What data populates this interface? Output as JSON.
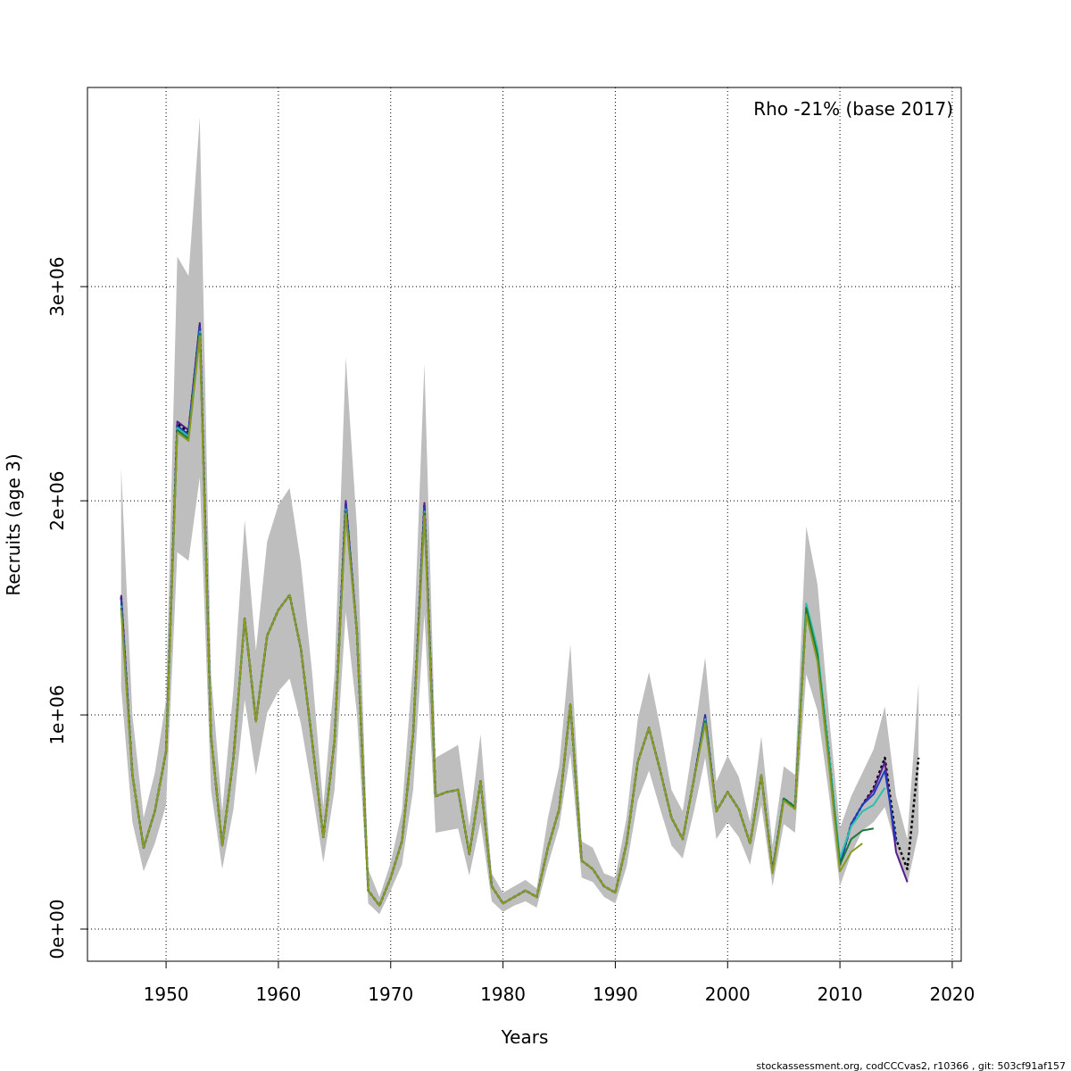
{
  "chart_data": {
    "type": "line",
    "xlabel": "Years",
    "ylabel": "Recruits (age 3)",
    "annotation": "Rho -21% (base 2017)",
    "footer": "stockassessment.org, codCCCvas2, r10366 , git: 503cf91af157",
    "xlim": [
      1943.0,
      2020.8
    ],
    "ylim": [
      -150000,
      3930000
    ],
    "x_ticks": [
      1950,
      1960,
      1970,
      1980,
      1990,
      2000,
      2010,
      2020
    ],
    "x_tick_labels": [
      "1950",
      "1960",
      "1970",
      "1980",
      "1990",
      "2000",
      "2010",
      "2020"
    ],
    "y_ticks": [
      0,
      1000000,
      2000000,
      3000000
    ],
    "y_tick_labels": [
      "0e+00",
      "1e+06",
      "2e+06",
      "3e+06"
    ],
    "grid": true,
    "legend_position": "top-right",
    "ci_band_color": "#bebebe",
    "ci_band": {
      "x": [
        1946,
        1947,
        1948,
        1949,
        1950,
        1951,
        1952,
        1953,
        1954,
        1955,
        1956,
        1957,
        1958,
        1959,
        1960,
        1961,
        1962,
        1963,
        1964,
        1965,
        1966,
        1967,
        1968,
        1969,
        1970,
        1971,
        1972,
        1973,
        1974,
        1975,
        1976,
        1977,
        1978,
        1979,
        1980,
        1981,
        1982,
        1983,
        1984,
        1985,
        1986,
        1987,
        1988,
        1989,
        1990,
        1991,
        1992,
        1993,
        1994,
        1995,
        1996,
        1997,
        1998,
        1999,
        2000,
        2001,
        2002,
        2003,
        2004,
        2005,
        2006,
        2007,
        2008,
        2009,
        2010,
        2011,
        2012,
        2013,
        2014,
        2015,
        2016,
        2017
      ],
      "lower": [
        1130000,
        500000,
        270000,
        400000,
        580000,
        1760000,
        1720000,
        2110000,
        650000,
        280000,
        560000,
        1070000,
        720000,
        1010000,
        1110000,
        1170000,
        960000,
        650000,
        310000,
        650000,
        1480000,
        1000000,
        120000,
        70000,
        180000,
        300000,
        650000,
        1470000,
        450000,
        460000,
        470000,
        250000,
        500000,
        130000,
        80000,
        110000,
        130000,
        100000,
        300000,
        480000,
        820000,
        240000,
        220000,
        150000,
        120000,
        290000,
        600000,
        740000,
        560000,
        390000,
        330000,
        550000,
        800000,
        420000,
        500000,
        430000,
        300000,
        580000,
        200000,
        490000,
        450000,
        1190000,
        1020000,
        640000,
        200000,
        350000,
        460000,
        500000,
        570000,
        380000,
        210000,
        450000
      ],
      "upper": [
        2150000,
        1000000,
        520000,
        730000,
        1070000,
        3140000,
        3050000,
        3790000,
        1190000,
        550000,
        1120000,
        1910000,
        1300000,
        1810000,
        1980000,
        2060000,
        1710000,
        1200000,
        570000,
        1190000,
        2670000,
        1870000,
        280000,
        150000,
        310000,
        550000,
        1250000,
        2640000,
        800000,
        830000,
        860000,
        480000,
        910000,
        260000,
        170000,
        200000,
        230000,
        190000,
        520000,
        760000,
        1330000,
        410000,
        380000,
        260000,
        240000,
        520000,
        980000,
        1200000,
        940000,
        650000,
        550000,
        890000,
        1270000,
        690000,
        810000,
        710000,
        500000,
        900000,
        390000,
        760000,
        720000,
        1880000,
        1610000,
        1010000,
        470000,
        620000,
        730000,
        840000,
        1040000,
        620000,
        420000,
        1150000
      ]
    },
    "series": [
      {
        "color": "#000000",
        "dashed": true,
        "x": [
          1946,
          1947,
          1948,
          1949,
          1950,
          1951,
          1952,
          1953,
          1954,
          1955,
          1956,
          1957,
          1958,
          1959,
          1960,
          1961,
          1962,
          1963,
          1964,
          1965,
          1966,
          1967,
          1968,
          1969,
          1970,
          1971,
          1972,
          1973,
          1974,
          1975,
          1976,
          1977,
          1978,
          1979,
          1980,
          1981,
          1982,
          1983,
          1984,
          1985,
          1986,
          1987,
          1988,
          1989,
          1990,
          1991,
          1992,
          1993,
          1994,
          1995,
          1996,
          1997,
          1998,
          1999,
          2000,
          2001,
          2002,
          2003,
          2004,
          2005,
          2006,
          2007,
          2008,
          2009,
          2010,
          2011,
          2012,
          2013,
          2014,
          2015,
          2016,
          2017
        ],
        "y": [
          1550000,
          720000,
          380000,
          550000,
          830000,
          2360000,
          2320000,
          2820000,
          900000,
          390000,
          800000,
          1450000,
          970000,
          1370000,
          1490000,
          1560000,
          1310000,
          880000,
          430000,
          880000,
          1990000,
          1380000,
          180000,
          110000,
          240000,
          410000,
          910000,
          1980000,
          620000,
          640000,
          650000,
          350000,
          690000,
          200000,
          120000,
          150000,
          180000,
          150000,
          380000,
          560000,
          1050000,
          320000,
          280000,
          200000,
          170000,
          400000,
          780000,
          940000,
          740000,
          520000,
          420000,
          700000,
          990000,
          550000,
          640000,
          560000,
          400000,
          720000,
          270000,
          610000,
          570000,
          1490000,
          1290000,
          830000,
          300000,
          490000,
          580000,
          660000,
          800000,
          420000,
          280000,
          800000
        ]
      },
      {
        "color": "#551a8b",
        "x": [
          1946,
          1947,
          1948,
          1949,
          1950,
          1951,
          1952,
          1953,
          1954,
          1955,
          1956,
          1957,
          1958,
          1959,
          1960,
          1961,
          1962,
          1963,
          1964,
          1965,
          1966,
          1967,
          1968,
          1969,
          1970,
          1971,
          1972,
          1973,
          1974,
          1975,
          1976,
          1977,
          1978,
          1979,
          1980,
          1981,
          1982,
          1983,
          1984,
          1985,
          1986,
          1987,
          1988,
          1989,
          1990,
          1991,
          1992,
          1993,
          1994,
          1995,
          1996,
          1997,
          1998,
          1999,
          2000,
          2001,
          2002,
          2003,
          2004,
          2005,
          2006,
          2007,
          2008,
          2009,
          2010,
          2011,
          2012,
          2013,
          2014,
          2015,
          2016
        ],
        "y": [
          1560000,
          720000,
          380000,
          550000,
          830000,
          2370000,
          2330000,
          2830000,
          900000,
          390000,
          800000,
          1450000,
          970000,
          1370000,
          1490000,
          1560000,
          1310000,
          880000,
          430000,
          880000,
          2000000,
          1380000,
          180000,
          110000,
          240000,
          410000,
          910000,
          1990000,
          620000,
          640000,
          650000,
          350000,
          690000,
          200000,
          120000,
          150000,
          180000,
          150000,
          380000,
          560000,
          1050000,
          320000,
          280000,
          200000,
          170000,
          400000,
          780000,
          940000,
          740000,
          520000,
          420000,
          700000,
          1000000,
          550000,
          640000,
          560000,
          400000,
          720000,
          270000,
          610000,
          570000,
          1480000,
          1280000,
          820000,
          300000,
          490000,
          580000,
          650000,
          780000,
          360000,
          220000
        ]
      },
      {
        "color": "#1f3fbf",
        "x": [
          1946,
          1947,
          1948,
          1949,
          1950,
          1951,
          1952,
          1953,
          1954,
          1955,
          1956,
          1957,
          1958,
          1959,
          1960,
          1961,
          1962,
          1963,
          1964,
          1965,
          1966,
          1967,
          1968,
          1969,
          1970,
          1971,
          1972,
          1973,
          1974,
          1975,
          1976,
          1977,
          1978,
          1979,
          1980,
          1981,
          1982,
          1983,
          1984,
          1985,
          1986,
          1987,
          1988,
          1989,
          1990,
          1991,
          1992,
          1993,
          1994,
          1995,
          1996,
          1997,
          1998,
          1999,
          2000,
          2001,
          2002,
          2003,
          2004,
          2005,
          2006,
          2007,
          2008,
          2009,
          2010,
          2011,
          2012,
          2013,
          2014,
          2015
        ],
        "y": [
          1540000,
          720000,
          380000,
          550000,
          830000,
          2350000,
          2310000,
          2810000,
          900000,
          390000,
          800000,
          1450000,
          970000,
          1370000,
          1490000,
          1560000,
          1310000,
          880000,
          430000,
          880000,
          1980000,
          1380000,
          180000,
          110000,
          240000,
          410000,
          910000,
          1970000,
          620000,
          640000,
          650000,
          350000,
          690000,
          200000,
          120000,
          150000,
          180000,
          150000,
          380000,
          560000,
          1050000,
          320000,
          280000,
          200000,
          170000,
          400000,
          780000,
          940000,
          740000,
          520000,
          420000,
          700000,
          990000,
          550000,
          640000,
          560000,
          400000,
          720000,
          270000,
          610000,
          570000,
          1500000,
          1290000,
          820000,
          300000,
          490000,
          580000,
          630000,
          740000,
          410000
        ]
      },
      {
        "color": "#2abfad",
        "x": [
          1946,
          1947,
          1948,
          1949,
          1950,
          1951,
          1952,
          1953,
          1954,
          1955,
          1956,
          1957,
          1958,
          1959,
          1960,
          1961,
          1962,
          1963,
          1964,
          1965,
          1966,
          1967,
          1968,
          1969,
          1970,
          1971,
          1972,
          1973,
          1974,
          1975,
          1976,
          1977,
          1978,
          1979,
          1980,
          1981,
          1982,
          1983,
          1984,
          1985,
          1986,
          1987,
          1988,
          1989,
          1990,
          1991,
          1992,
          1993,
          1994,
          1995,
          1996,
          1997,
          1998,
          1999,
          2000,
          2001,
          2002,
          2003,
          2004,
          2005,
          2006,
          2007,
          2008,
          2009,
          2010,
          2011,
          2012,
          2013,
          2014
        ],
        "y": [
          1510000,
          720000,
          380000,
          550000,
          830000,
          2340000,
          2300000,
          2790000,
          900000,
          390000,
          800000,
          1450000,
          970000,
          1370000,
          1490000,
          1560000,
          1310000,
          880000,
          430000,
          880000,
          1960000,
          1380000,
          180000,
          110000,
          240000,
          410000,
          910000,
          1950000,
          620000,
          640000,
          650000,
          350000,
          690000,
          200000,
          120000,
          150000,
          180000,
          150000,
          380000,
          560000,
          1050000,
          320000,
          280000,
          200000,
          170000,
          400000,
          780000,
          940000,
          740000,
          520000,
          420000,
          700000,
          980000,
          550000,
          640000,
          560000,
          400000,
          720000,
          270000,
          610000,
          570000,
          1520000,
          1310000,
          830000,
          330000,
          480000,
          550000,
          580000,
          660000
        ]
      },
      {
        "color": "#1a7a3a",
        "x": [
          1946,
          1947,
          1948,
          1949,
          1950,
          1951,
          1952,
          1953,
          1954,
          1955,
          1956,
          1957,
          1958,
          1959,
          1960,
          1961,
          1962,
          1963,
          1964,
          1965,
          1966,
          1967,
          1968,
          1969,
          1970,
          1971,
          1972,
          1973,
          1974,
          1975,
          1976,
          1977,
          1978,
          1979,
          1980,
          1981,
          1982,
          1983,
          1984,
          1985,
          1986,
          1987,
          1988,
          1989,
          1990,
          1991,
          1992,
          1993,
          1994,
          1995,
          1996,
          1997,
          1998,
          1999,
          2000,
          2001,
          2002,
          2003,
          2004,
          2005,
          2006,
          2007,
          2008,
          2009,
          2010,
          2011,
          2012,
          2013
        ],
        "y": [
          1500000,
          720000,
          380000,
          550000,
          830000,
          2330000,
          2290000,
          2780000,
          900000,
          390000,
          800000,
          1450000,
          970000,
          1370000,
          1490000,
          1560000,
          1310000,
          880000,
          430000,
          880000,
          1950000,
          1380000,
          180000,
          110000,
          240000,
          410000,
          910000,
          1940000,
          620000,
          640000,
          650000,
          350000,
          690000,
          200000,
          120000,
          150000,
          180000,
          150000,
          380000,
          560000,
          1050000,
          320000,
          280000,
          200000,
          170000,
          400000,
          780000,
          940000,
          740000,
          520000,
          420000,
          700000,
          970000,
          550000,
          640000,
          560000,
          400000,
          720000,
          270000,
          610000,
          570000,
          1500000,
          1280000,
          800000,
          300000,
          420000,
          460000,
          470000
        ]
      },
      {
        "color": "#8a9a22",
        "x": [
          1946,
          1947,
          1948,
          1949,
          1950,
          1951,
          1952,
          1953,
          1954,
          1955,
          1956,
          1957,
          1958,
          1959,
          1960,
          1961,
          1962,
          1963,
          1964,
          1965,
          1966,
          1967,
          1968,
          1969,
          1970,
          1971,
          1972,
          1973,
          1974,
          1975,
          1976,
          1977,
          1978,
          1979,
          1980,
          1981,
          1982,
          1983,
          1984,
          1985,
          1986,
          1987,
          1988,
          1989,
          1990,
          1991,
          1992,
          1993,
          1994,
          1995,
          1996,
          1997,
          1998,
          1999,
          2000,
          2001,
          2002,
          2003,
          2004,
          2005,
          2006,
          2007,
          2008,
          2009,
          2010,
          2011,
          2012
        ],
        "y": [
          1490000,
          720000,
          380000,
          550000,
          830000,
          2320000,
          2280000,
          2770000,
          900000,
          390000,
          800000,
          1450000,
          970000,
          1370000,
          1490000,
          1560000,
          1310000,
          880000,
          430000,
          880000,
          1940000,
          1380000,
          180000,
          110000,
          240000,
          410000,
          910000,
          1930000,
          620000,
          640000,
          650000,
          350000,
          690000,
          200000,
          120000,
          150000,
          180000,
          150000,
          380000,
          560000,
          1050000,
          320000,
          280000,
          200000,
          170000,
          400000,
          780000,
          940000,
          740000,
          520000,
          420000,
          700000,
          960000,
          550000,
          640000,
          560000,
          400000,
          720000,
          260000,
          600000,
          560000,
          1470000,
          1250000,
          780000,
          270000,
          360000,
          400000
        ]
      }
    ]
  }
}
